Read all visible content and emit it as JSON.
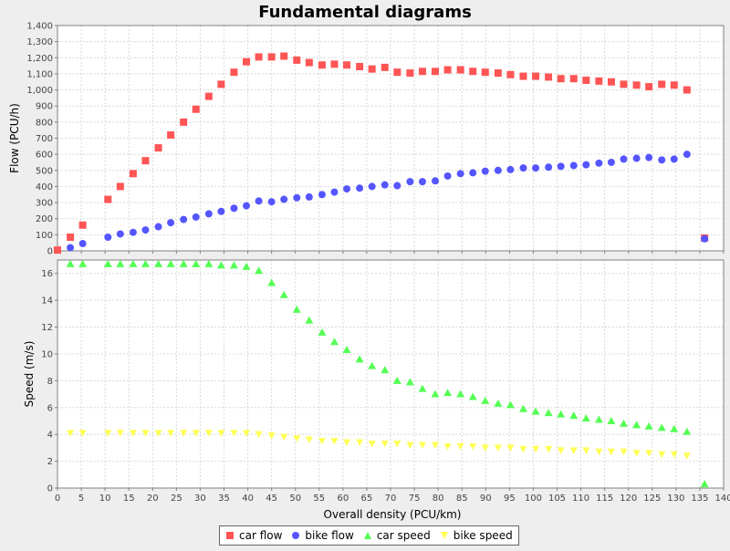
{
  "chart_data": [
    {
      "type": "scatter",
      "title": "Fundamental diagrams",
      "xlabel": "Overall density (PCU/km)",
      "ylabel": "Flow (PCU/h)",
      "xlim": [
        0,
        140
      ],
      "ylim": [
        0,
        1400
      ],
      "grid": true,
      "x_ticks": [
        "0",
        "5",
        "10",
        "15",
        "20",
        "25",
        "30",
        "35",
        "40",
        "45",
        "50",
        "55",
        "60",
        "65",
        "70",
        "75",
        "80",
        "85",
        "90",
        "95",
        "100",
        "105",
        "110",
        "115",
        "120",
        "125",
        "130",
        "135",
        "140"
      ],
      "y_ticks": [
        "0",
        "100",
        "200",
        "300",
        "400",
        "500",
        "600",
        "700",
        "800",
        "900",
        "1,000",
        "1,100",
        "1,200",
        "1,300",
        "1,400"
      ],
      "series": [
        {
          "name": "car flow",
          "color": "#ff5555",
          "marker": "square",
          "x": [
            0,
            2.7,
            5.3,
            10.6,
            13.2,
            15.9,
            18.5,
            21.2,
            23.8,
            26.5,
            29.1,
            31.8,
            34.4,
            37.1,
            39.7,
            42.3,
            45.0,
            47.6,
            50.3,
            52.9,
            55.6,
            58.2,
            60.8,
            63.5,
            66.1,
            68.8,
            71.4,
            74.1,
            76.7,
            79.4,
            82.0,
            84.7,
            87.3,
            89.9,
            92.6,
            95.2,
            97.9,
            100.5,
            103.2,
            105.8,
            108.5,
            111.1,
            113.8,
            116.4,
            119.0,
            121.7,
            124.3,
            127.0,
            129.6,
            132.3,
            136.0
          ],
          "y": [
            5,
            85,
            160,
            320,
            400,
            480,
            560,
            640,
            720,
            800,
            880,
            960,
            1035,
            1110,
            1175,
            1205,
            1205,
            1210,
            1185,
            1170,
            1155,
            1160,
            1155,
            1145,
            1130,
            1140,
            1110,
            1105,
            1115,
            1115,
            1125,
            1125,
            1115,
            1110,
            1105,
            1095,
            1085,
            1085,
            1080,
            1070,
            1070,
            1060,
            1055,
            1050,
            1035,
            1030,
            1020,
            1035,
            1030,
            1000,
            80
          ]
        },
        {
          "name": "bike flow",
          "color": "#5555ff",
          "marker": "circle",
          "x": [
            2.7,
            5.3,
            10.6,
            13.2,
            15.9,
            18.5,
            21.2,
            23.8,
            26.5,
            29.1,
            31.8,
            34.4,
            37.1,
            39.7,
            42.3,
            45.0,
            47.6,
            50.3,
            52.9,
            55.6,
            58.2,
            60.8,
            63.5,
            66.1,
            68.8,
            71.4,
            74.1,
            76.7,
            79.4,
            82.0,
            84.7,
            87.3,
            89.9,
            92.6,
            95.2,
            97.9,
            100.5,
            103.2,
            105.8,
            108.5,
            111.1,
            113.8,
            116.4,
            119.0,
            121.7,
            124.3,
            127.0,
            129.6,
            132.3,
            136.0
          ],
          "y": [
            20,
            45,
            85,
            105,
            115,
            130,
            150,
            175,
            195,
            210,
            230,
            245,
            265,
            280,
            310,
            305,
            320,
            330,
            335,
            350,
            365,
            385,
            390,
            400,
            410,
            405,
            430,
            430,
            435,
            465,
            480,
            485,
            495,
            500,
            505,
            515,
            515,
            520,
            525,
            530,
            535,
            545,
            550,
            570,
            575,
            580,
            565,
            570,
            600,
            75
          ]
        }
      ]
    },
    {
      "type": "scatter",
      "title": "",
      "xlabel": "Overall density (PCU/km)",
      "ylabel": "Speed (m/s)",
      "xlim": [
        0,
        140
      ],
      "ylim": [
        0,
        17
      ],
      "grid": true,
      "x_ticks": [
        "0",
        "5",
        "10",
        "15",
        "20",
        "25",
        "30",
        "35",
        "40",
        "45",
        "50",
        "55",
        "60",
        "65",
        "70",
        "75",
        "80",
        "85",
        "90",
        "95",
        "100",
        "105",
        "110",
        "115",
        "120",
        "125",
        "130",
        "135",
        "140"
      ],
      "y_ticks": [
        "0",
        "2",
        "4",
        "6",
        "8",
        "10",
        "12",
        "14",
        "16"
      ],
      "series": [
        {
          "name": "car speed",
          "color": "#55ff55",
          "marker": "triangle",
          "x": [
            2.7,
            5.3,
            10.6,
            13.2,
            15.9,
            18.5,
            21.2,
            23.8,
            26.5,
            29.1,
            31.8,
            34.4,
            37.1,
            39.7,
            42.3,
            45.0,
            47.6,
            50.3,
            52.9,
            55.6,
            58.2,
            60.8,
            63.5,
            66.1,
            68.8,
            71.4,
            74.1,
            76.7,
            79.4,
            82.0,
            84.7,
            87.3,
            89.9,
            92.6,
            95.2,
            97.9,
            100.5,
            103.2,
            105.8,
            108.5,
            111.1,
            113.8,
            116.4,
            119.0,
            121.7,
            124.3,
            127.0,
            129.6,
            132.3,
            136.0
          ],
          "y": [
            16.7,
            16.7,
            16.7,
            16.7,
            16.7,
            16.7,
            16.7,
            16.7,
            16.7,
            16.7,
            16.7,
            16.6,
            16.6,
            16.5,
            16.2,
            15.3,
            14.4,
            13.3,
            12.5,
            11.6,
            10.9,
            10.3,
            9.6,
            9.1,
            8.8,
            8.0,
            7.9,
            7.4,
            7.0,
            7.1,
            7.0,
            6.8,
            6.5,
            6.3,
            6.2,
            5.9,
            5.7,
            5.6,
            5.5,
            5.4,
            5.2,
            5.1,
            5.0,
            4.8,
            4.7,
            4.6,
            4.5,
            4.4,
            4.2,
            0.3
          ]
        },
        {
          "name": "bike speed",
          "color": "#ffff55",
          "marker": "inverted-triangle",
          "x": [
            2.7,
            5.3,
            10.6,
            13.2,
            15.9,
            18.5,
            21.2,
            23.8,
            26.5,
            29.1,
            31.8,
            34.4,
            37.1,
            39.7,
            42.3,
            45.0,
            47.6,
            50.3,
            52.9,
            55.6,
            58.2,
            60.8,
            63.5,
            66.1,
            68.8,
            71.4,
            74.1,
            76.7,
            79.4,
            82.0,
            84.7,
            87.3,
            89.9,
            92.6,
            95.2,
            97.9,
            100.5,
            103.2,
            105.8,
            108.5,
            111.1,
            113.8,
            116.4,
            119.0,
            121.7,
            124.3,
            127.0,
            129.6,
            132.3
          ],
          "y": [
            4.1,
            4.1,
            4.1,
            4.1,
            4.1,
            4.1,
            4.1,
            4.1,
            4.1,
            4.1,
            4.1,
            4.1,
            4.1,
            4.1,
            4.0,
            3.9,
            3.8,
            3.7,
            3.6,
            3.5,
            3.5,
            3.4,
            3.4,
            3.3,
            3.3,
            3.3,
            3.2,
            3.2,
            3.2,
            3.1,
            3.1,
            3.1,
            3.0,
            3.0,
            3.0,
            2.9,
            2.9,
            2.9,
            2.8,
            2.8,
            2.8,
            2.7,
            2.7,
            2.7,
            2.6,
            2.6,
            2.5,
            2.5,
            2.4
          ]
        }
      ]
    }
  ],
  "legend": {
    "items": [
      {
        "label": "car flow",
        "color": "#ff5555",
        "marker": "square"
      },
      {
        "label": "bike flow",
        "color": "#5555ff",
        "marker": "circle"
      },
      {
        "label": "car speed",
        "color": "#55ff55",
        "marker": "triangle"
      },
      {
        "label": "bike speed",
        "color": "#ffff55",
        "marker": "inverted-triangle"
      }
    ]
  }
}
